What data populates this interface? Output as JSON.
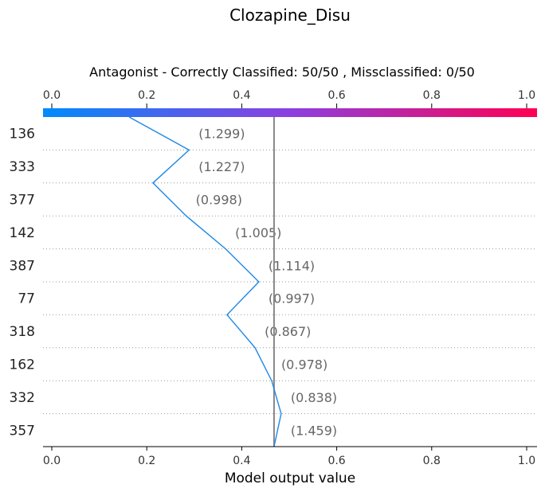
{
  "chart_data": {
    "type": "line",
    "title": "Clozapine_Disu",
    "subtitle": "Antagonist - Correctly Classified: 50/50 , Missclassified: 0/50",
    "xlabel": "Model output value",
    "ylabel": "",
    "xlim": [
      0.0,
      1.0
    ],
    "x_ticks": [
      "0.0",
      "0.2",
      "0.4",
      "0.6",
      "0.8",
      "1.0"
    ],
    "base_value": 0.468,
    "colorbar": {
      "from": "#008bfb",
      "mid": "#8c3fe0",
      "to": "#ff0052"
    },
    "features": [
      {
        "name": "136",
        "value": "(1.299)",
        "start": 0.163,
        "end": 0.289
      },
      {
        "name": "333",
        "value": "(1.227)",
        "start": 0.289,
        "end": 0.213
      },
      {
        "name": "377",
        "value": "(0.998)",
        "start": 0.213,
        "end": 0.283
      },
      {
        "name": "142",
        "value": "(1.005)",
        "start": 0.283,
        "end": 0.366
      },
      {
        "name": "387",
        "value": "(1.114)",
        "start": 0.366,
        "end": 0.436
      },
      {
        "name": "77",
        "value": "(0.997)",
        "start": 0.436,
        "end": 0.369
      },
      {
        "name": "318",
        "value": "(0.867)",
        "start": 0.369,
        "end": 0.428
      },
      {
        "name": "162",
        "value": "(0.978)",
        "start": 0.428,
        "end": 0.463
      },
      {
        "name": "332",
        "value": "(0.838)",
        "start": 0.463,
        "end": 0.483
      },
      {
        "name": "357",
        "value": "(1.459)",
        "start": 0.483,
        "end": 0.468
      }
    ],
    "line_color": "#1e88e5",
    "grid": "dotted horizontal"
  }
}
